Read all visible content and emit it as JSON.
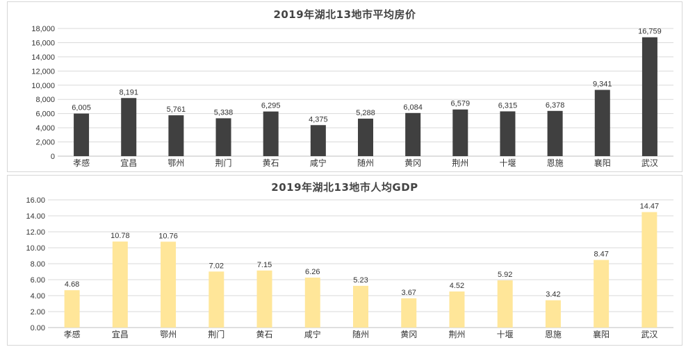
{
  "chart_data": [
    {
      "type": "bar",
      "title": "2019年湖北13地市平均房价",
      "color": "#404040",
      "categories": [
        "孝感",
        "宜昌",
        "鄂州",
        "荆门",
        "黄石",
        "咸宁",
        "随州",
        "黄冈",
        "荆州",
        "十堰",
        "恩施",
        "襄阳",
        "武汉"
      ],
      "values": [
        6005,
        8191,
        5761,
        5338,
        6295,
        4375,
        5288,
        6084,
        6579,
        6315,
        6378,
        9341,
        16759
      ],
      "value_labels": [
        "6,005",
        "8,191",
        "5,761",
        "5,338",
        "6,295",
        "4,375",
        "5,288",
        "6,084",
        "6,579",
        "6,315",
        "6,378",
        "9,341",
        "16,759"
      ],
      "yticks": [
        "0",
        "2,000",
        "4,000",
        "6,000",
        "8,000",
        "10,000",
        "12,000",
        "14,000",
        "16,000",
        "18,000"
      ],
      "ylim": [
        0,
        18000
      ],
      "xlabel": "",
      "ylabel": "",
      "grid": true
    },
    {
      "type": "bar",
      "title": "2019年湖北13地市人均GDP",
      "color": "#ffe699",
      "categories": [
        "孝感",
        "宜昌",
        "鄂州",
        "荆门",
        "黄石",
        "咸宁",
        "随州",
        "黄冈",
        "荆州",
        "十堰",
        "恩施",
        "襄阳",
        "武汉"
      ],
      "values": [
        4.68,
        10.78,
        10.76,
        7.02,
        7.15,
        6.26,
        5.23,
        3.67,
        4.52,
        5.92,
        3.42,
        8.47,
        14.47
      ],
      "value_labels": [
        "4.68",
        "10.78",
        "10.76",
        "7.02",
        "7.15",
        "6.26",
        "5.23",
        "3.67",
        "4.52",
        "5.92",
        "3.42",
        "8.47",
        "14.47"
      ],
      "yticks": [
        "0.00",
        "2.00",
        "4.00",
        "6.00",
        "8.00",
        "10.00",
        "12.00",
        "14.00",
        "16.00"
      ],
      "ylim": [
        0,
        16
      ],
      "xlabel": "",
      "ylabel": "",
      "grid": true
    }
  ]
}
